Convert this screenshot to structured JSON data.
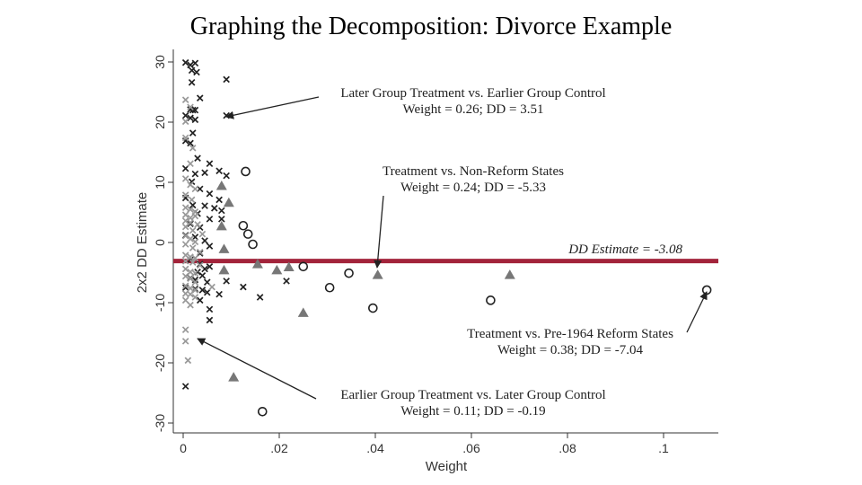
{
  "slide": {
    "title": "Graphing the  Decomposition: Divorce Example"
  },
  "colors": {
    "dd_line": "#a3243b",
    "later_vs_earlier": "#222222",
    "earlier_vs_later": "#999999",
    "triangles": "#777777",
    "circles": "#222222"
  },
  "chart_data": {
    "type": "scatter",
    "xlabel": "Weight",
    "ylabel": "2x2 DD Estimate",
    "xlim": [
      -0.002,
      0.112
    ],
    "ylim": [
      -31,
      31
    ],
    "x_ticks": [
      0,
      0.02,
      0.04,
      0.06,
      0.08,
      0.1
    ],
    "x_tick_labels": [
      "0",
      ".02",
      ".04",
      ".06",
      ".08",
      ".1"
    ],
    "y_ticks": [
      -30,
      -20,
      -10,
      0,
      10,
      20,
      30
    ],
    "y_tick_labels": [
      "-30",
      "-20",
      "-10",
      "0",
      "10",
      "20",
      "30"
    ],
    "dd_estimate": {
      "value": -3.08,
      "label": "DD Estimate = -3.08"
    },
    "series": [
      {
        "marker": "x",
        "points": [
          [
            0.0005,
            29.9
          ],
          [
            0.0015,
            29.5
          ],
          [
            0.0025,
            29.8
          ],
          [
            0.0018,
            28.6
          ],
          [
            0.0028,
            28.3
          ],
          [
            0.0018,
            26.6
          ],
          [
            0.009,
            27.1
          ],
          [
            0.0035,
            24.0
          ],
          [
            0.0015,
            22.1
          ],
          [
            0.002,
            22.0
          ],
          [
            0.0025,
            22.0
          ],
          [
            0.0005,
            21.1
          ],
          [
            0.0015,
            20.7
          ],
          [
            0.0025,
            20.4
          ],
          [
            0.009,
            21.1
          ],
          [
            0.002,
            18.2
          ],
          [
            0.0005,
            16.9
          ],
          [
            0.0015,
            16.5
          ],
          [
            0.003,
            14.0
          ],
          [
            0.0055,
            13.1
          ],
          [
            0.0045,
            11.6
          ],
          [
            0.0005,
            12.3
          ],
          [
            0.0025,
            11.4
          ],
          [
            0.0075,
            11.9
          ],
          [
            0.009,
            11.1
          ],
          [
            0.0018,
            10.1
          ],
          [
            0.0035,
            8.9
          ],
          [
            0.0055,
            8.1
          ],
          [
            0.0075,
            7.1
          ],
          [
            0.0005,
            7.4
          ],
          [
            0.002,
            6.2
          ],
          [
            0.0045,
            6.1
          ],
          [
            0.0065,
            5.7
          ],
          [
            0.008,
            5.3
          ],
          [
            0.003,
            4.8
          ],
          [
            0.0055,
            3.9
          ],
          [
            0.008,
            3.9
          ],
          [
            0.0015,
            3.1
          ],
          [
            0.0035,
            2.5
          ],
          [
            0.0005,
            1.2
          ],
          [
            0.0025,
            0.9
          ],
          [
            0.0045,
            0.3
          ],
          [
            0.0055,
            -0.6
          ],
          [
            0.0035,
            -1.8
          ],
          [
            0.0015,
            -2.9
          ],
          [
            0.0035,
            -3.6
          ],
          [
            0.0055,
            -4.0
          ],
          [
            0.0045,
            -4.4
          ],
          [
            0.003,
            -4.9
          ],
          [
            0.004,
            -5.5
          ],
          [
            0.0015,
            -5.9
          ],
          [
            0.0025,
            -6.2
          ],
          [
            0.005,
            -6.6
          ],
          [
            0.0005,
            -7.5
          ],
          [
            0.0025,
            -7.7
          ],
          [
            0.004,
            -7.9
          ],
          [
            0.005,
            -8.3
          ],
          [
            0.009,
            -6.4
          ],
          [
            0.0125,
            -7.4
          ],
          [
            0.0215,
            -6.4
          ],
          [
            0.0075,
            -8.6
          ],
          [
            0.0035,
            -9.6
          ],
          [
            0.0055,
            -11.1
          ],
          [
            0.0055,
            -12.9
          ],
          [
            0.016,
            -9.1
          ],
          [
            0.0005,
            -23.9
          ]
        ]
      },
      {
        "marker": "x",
        "points": [
          [
            0.0005,
            23.7
          ],
          [
            0.0015,
            22.5
          ],
          [
            0.0005,
            20.1
          ],
          [
            0.0005,
            17.4
          ],
          [
            0.002,
            15.7
          ],
          [
            0.0015,
            13.1
          ],
          [
            0.0005,
            10.6
          ],
          [
            0.0015,
            9.6
          ],
          [
            0.0025,
            8.9
          ],
          [
            0.0005,
            7.9
          ],
          [
            0.0018,
            7.1
          ],
          [
            0.0005,
            5.8
          ],
          [
            0.0015,
            5.5
          ],
          [
            0.0025,
            5.1
          ],
          [
            0.0005,
            4.6
          ],
          [
            0.0015,
            4.1
          ],
          [
            0.0025,
            4.4
          ],
          [
            0.0005,
            3.6
          ],
          [
            0.0015,
            3.3
          ],
          [
            0.003,
            3.0
          ],
          [
            0.0005,
            2.6
          ],
          [
            0.002,
            2.0
          ],
          [
            0.004,
            1.4
          ],
          [
            0.0005,
            1.1
          ],
          [
            0.0015,
            0.6
          ],
          [
            0.0025,
            0.1
          ],
          [
            0.0005,
            -0.3
          ],
          [
            0.002,
            -0.9
          ],
          [
            0.0035,
            -1.6
          ],
          [
            0.0005,
            -2.1
          ],
          [
            0.0015,
            -2.4
          ],
          [
            0.0025,
            -2.6
          ],
          [
            0.0005,
            -3.1
          ],
          [
            0.002,
            -3.3
          ],
          [
            0.0035,
            -3.8
          ],
          [
            0.0005,
            -4.4
          ],
          [
            0.0015,
            -4.9
          ],
          [
            0.0025,
            -5.1
          ],
          [
            0.0005,
            -5.6
          ],
          [
            0.0015,
            -6.0
          ],
          [
            0.0025,
            -6.6
          ],
          [
            0.0005,
            -7.2
          ],
          [
            0.0015,
            -7.6
          ],
          [
            0.0025,
            -7.9
          ],
          [
            0.006,
            -7.4
          ],
          [
            0.0005,
            -8.5
          ],
          [
            0.0015,
            -8.6
          ],
          [
            0.0025,
            -9.1
          ],
          [
            0.0005,
            -9.6
          ],
          [
            0.0015,
            -10.4
          ],
          [
            0.0005,
            -14.5
          ],
          [
            0.0005,
            -16.4
          ],
          [
            0.001,
            -19.6
          ]
        ]
      },
      {
        "marker": "triangle",
        "points": [
          [
            0.008,
            9.4
          ],
          [
            0.0095,
            6.6
          ],
          [
            0.008,
            2.7
          ],
          [
            0.0085,
            -1.1
          ],
          [
            0.0155,
            -3.6
          ],
          [
            0.0085,
            -4.6
          ],
          [
            0.0195,
            -4.6
          ],
          [
            0.022,
            -4.1
          ],
          [
            0.025,
            -11.7
          ],
          [
            0.0405,
            -5.4
          ],
          [
            0.068,
            -5.4
          ],
          [
            0.0105,
            -22.4
          ]
        ]
      },
      {
        "marker": "circle",
        "points": [
          [
            0.013,
            11.8
          ],
          [
            0.0125,
            2.8
          ],
          [
            0.0135,
            1.4
          ],
          [
            0.0145,
            -0.3
          ],
          [
            0.025,
            -4.0
          ],
          [
            0.0345,
            -5.1
          ],
          [
            0.0305,
            -7.5
          ],
          [
            0.0395,
            -10.9
          ],
          [
            0.064,
            -9.6
          ],
          [
            0.109,
            -7.9
          ],
          [
            0.0165,
            -28.1
          ]
        ]
      }
    ],
    "annotations": [
      {
        "line1": "Later Group Treatment vs. Earlier Group Control",
        "line2": "Weight = 0.26; DD = 3.51"
      },
      {
        "line1": "Treatment vs. Non-Reform States",
        "line2": "Weight = 0.24; DD = -5.33"
      },
      {
        "line1": "Treatment vs. Pre-1964 Reform States",
        "line2": "Weight = 0.38; DD = -7.04"
      },
      {
        "line1": "Earlier Group Treatment vs. Later Group Control",
        "line2": "Weight = 0.11; DD = -0.19"
      }
    ]
  }
}
